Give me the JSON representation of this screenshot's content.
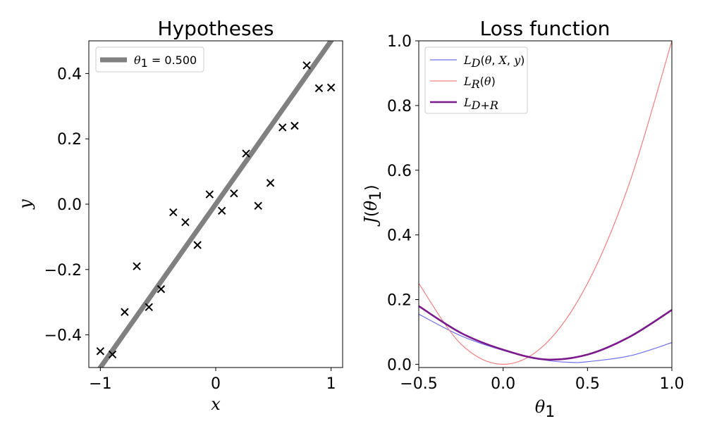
{
  "chart_data": [
    {
      "type": "scatter",
      "title": "Hypotheses",
      "xlabel": "x",
      "ylabel": "y",
      "xlim": [
        -1.1,
        1.1
      ],
      "ylim": [
        -0.5,
        0.5
      ],
      "xticks": [
        -1,
        0,
        1
      ],
      "xtick_labels": [
        "−1",
        "0",
        "1"
      ],
      "yticks": [
        -0.4,
        -0.2,
        0.0,
        0.2,
        0.4
      ],
      "ytick_labels": [
        "−0.4",
        "−0.2",
        "0.0",
        "0.2",
        "0.4"
      ],
      "legend_position": "top-left",
      "line": {
        "name": "θ1 = 0.500",
        "slope": 0.5,
        "color": "#808080"
      },
      "points": {
        "color": "#000000",
        "x": [
          -1.0,
          -0.895,
          -0.789,
          -0.684,
          -0.579,
          -0.474,
          -0.368,
          -0.263,
          -0.158,
          -0.053,
          0.053,
          0.158,
          0.263,
          0.368,
          0.474,
          0.579,
          0.684,
          0.789,
          0.895,
          1.0
        ],
        "y": [
          -0.45,
          -0.46,
          -0.33,
          -0.19,
          -0.315,
          -0.26,
          -0.025,
          -0.055,
          -0.125,
          0.03,
          -0.02,
          0.033,
          0.155,
          -0.005,
          0.065,
          0.235,
          0.24,
          0.425,
          0.355,
          0.357
        ]
      }
    },
    {
      "type": "line",
      "title": "Loss function",
      "xlabel": "θ1",
      "ylabel": "J(θ1)",
      "xlim": [
        -0.5,
        1.0
      ],
      "ylim": [
        -0.01,
        1.0
      ],
      "xticks": [
        -0.5,
        0.0,
        0.5,
        1.0
      ],
      "xtick_labels": [
        "−0.5",
        "0.0",
        "0.5",
        "1.0"
      ],
      "yticks": [
        0.0,
        0.2,
        0.4,
        0.6,
        0.8,
        1.0
      ],
      "ytick_labels": [
        "0.0",
        "0.2",
        "0.4",
        "0.6",
        "0.8",
        "1.0"
      ],
      "legend_position": "top-left",
      "series": [
        {
          "name": "LD(θ, X, y)",
          "color": "#7070ee",
          "x": [
            -0.5,
            -0.25,
            0.0,
            0.25,
            0.4,
            0.5,
            0.75,
            1.0
          ],
          "y": [
            0.155,
            0.088,
            0.043,
            0.013,
            0.006,
            0.008,
            0.026,
            0.067
          ]
        },
        {
          "name": "LR(θ)",
          "color": "#f08080",
          "x": [
            -0.5,
            -0.25,
            0.0,
            0.25,
            0.5,
            0.75,
            1.0
          ],
          "y": [
            0.25,
            0.0625,
            0.0,
            0.0625,
            0.25,
            0.5625,
            1.0
          ]
        },
        {
          "name": "LD+R",
          "color": "#7b1a8c",
          "x": [
            -0.5,
            -0.25,
            0.0,
            0.25,
            0.5,
            0.75,
            1.0
          ],
          "y": [
            0.18,
            0.097,
            0.045,
            0.015,
            0.03,
            0.085,
            0.168
          ]
        }
      ]
    }
  ]
}
